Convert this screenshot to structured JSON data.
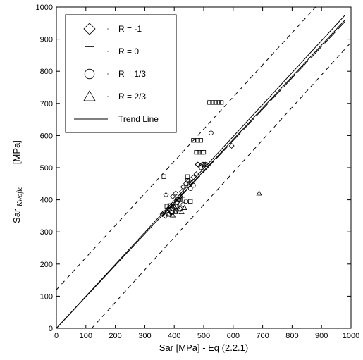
{
  "chart_data": {
    "type": "scatter",
    "title": "",
    "xlabel": "Sar [MPa] - Eq (2.2.1)",
    "ylabel": {
      "main": "Sar",
      "subscript": "Kwofie",
      "unit": "[MPa]"
    },
    "xlim": [
      0,
      1000
    ],
    "ylim": [
      0,
      1000
    ],
    "x_ticks": [
      "0",
      "100",
      "200",
      "300",
      "400",
      "500",
      "600",
      "700",
      "800",
      "900",
      "1000"
    ],
    "y_ticks": [
      "0",
      "100",
      "200",
      "300",
      "400",
      "500",
      "600",
      "700",
      "800",
      "900",
      "1000"
    ],
    "grid": false,
    "legend_position": "top-left",
    "series": [
      {
        "name": "R = -1",
        "marker": "diamond",
        "points": [
          [
            360,
            355
          ],
          [
            365,
            360
          ],
          [
            370,
            350
          ],
          [
            375,
            365
          ],
          [
            380,
            372
          ],
          [
            372,
            415
          ],
          [
            385,
            355
          ],
          [
            390,
            362
          ],
          [
            395,
            410
          ],
          [
            400,
            375
          ],
          [
            405,
            420
          ],
          [
            410,
            392
          ],
          [
            415,
            400
          ],
          [
            420,
            410
          ],
          [
            425,
            425
          ],
          [
            430,
            440
          ],
          [
            440,
            450
          ],
          [
            450,
            460
          ],
          [
            455,
            455
          ],
          [
            465,
            470
          ],
          [
            475,
            480
          ],
          [
            480,
            510
          ],
          [
            490,
            500
          ],
          [
            495,
            510
          ],
          [
            500,
            510
          ],
          [
            505,
            510
          ],
          [
            510,
            510
          ],
          [
            595,
            568
          ]
        ]
      },
      {
        "name": "R = 0",
        "marker": "square",
        "points": [
          [
            365,
            472
          ],
          [
            375,
            380
          ],
          [
            385,
            382
          ],
          [
            395,
            390
          ],
          [
            405,
            380
          ],
          [
            410,
            400
          ],
          [
            420,
            400
          ],
          [
            430,
            402
          ],
          [
            445,
            472
          ],
          [
            455,
            395
          ],
          [
            465,
            585
          ],
          [
            475,
            548
          ],
          [
            480,
            585
          ],
          [
            485,
            548
          ],
          [
            490,
            585
          ],
          [
            495,
            548
          ],
          [
            500,
            548
          ],
          [
            520,
            703
          ],
          [
            530,
            703
          ],
          [
            540,
            703
          ],
          [
            550,
            703
          ],
          [
            560,
            703
          ]
        ]
      },
      {
        "name": "R = 1/3",
        "marker": "circle",
        "points": [
          [
            380,
            355
          ],
          [
            390,
            360
          ],
          [
            395,
            372
          ],
          [
            405,
            365
          ],
          [
            410,
            380
          ],
          [
            420,
            372
          ],
          [
            430,
            385
          ],
          [
            440,
            395
          ],
          [
            445,
            460
          ],
          [
            455,
            435
          ],
          [
            465,
            445
          ],
          [
            480,
            510
          ],
          [
            490,
            505
          ],
          [
            500,
            510
          ],
          [
            525,
            608
          ]
        ]
      },
      {
        "name": "R = 2/3",
        "marker": "triangle",
        "points": [
          [
            395,
            352
          ],
          [
            405,
            362
          ],
          [
            415,
            370
          ],
          [
            425,
            362
          ],
          [
            435,
            375
          ],
          [
            688,
            420
          ]
        ]
      }
    ],
    "lines": [
      {
        "name": "Trend Line",
        "style": "solid",
        "from": [
          0,
          0
        ],
        "to": [
          980,
          975
        ]
      },
      {
        "name": "",
        "style": "solid",
        "from": [
          0,
          0
        ],
        "to": [
          980,
          960
        ]
      },
      {
        "name": "",
        "style": "long-dash",
        "from": [
          360,
          350
        ],
        "to": [
          980,
          955
        ]
      },
      {
        "name": "",
        "style": "dashed",
        "from": [
          0,
          120
        ],
        "to": [
          880,
          1000
        ]
      },
      {
        "name": "",
        "style": "dashed",
        "from": [
          120,
          0
        ],
        "to": [
          1000,
          890
        ]
      }
    ],
    "legend": [
      {
        "label": "R = -1",
        "marker": "diamond"
      },
      {
        "label": "R = 0",
        "marker": "square"
      },
      {
        "label": "R = 1/3",
        "marker": "circle"
      },
      {
        "label": "R = 2/3",
        "marker": "triangle"
      },
      {
        "label": "Trend Line",
        "marker": "line"
      }
    ]
  }
}
